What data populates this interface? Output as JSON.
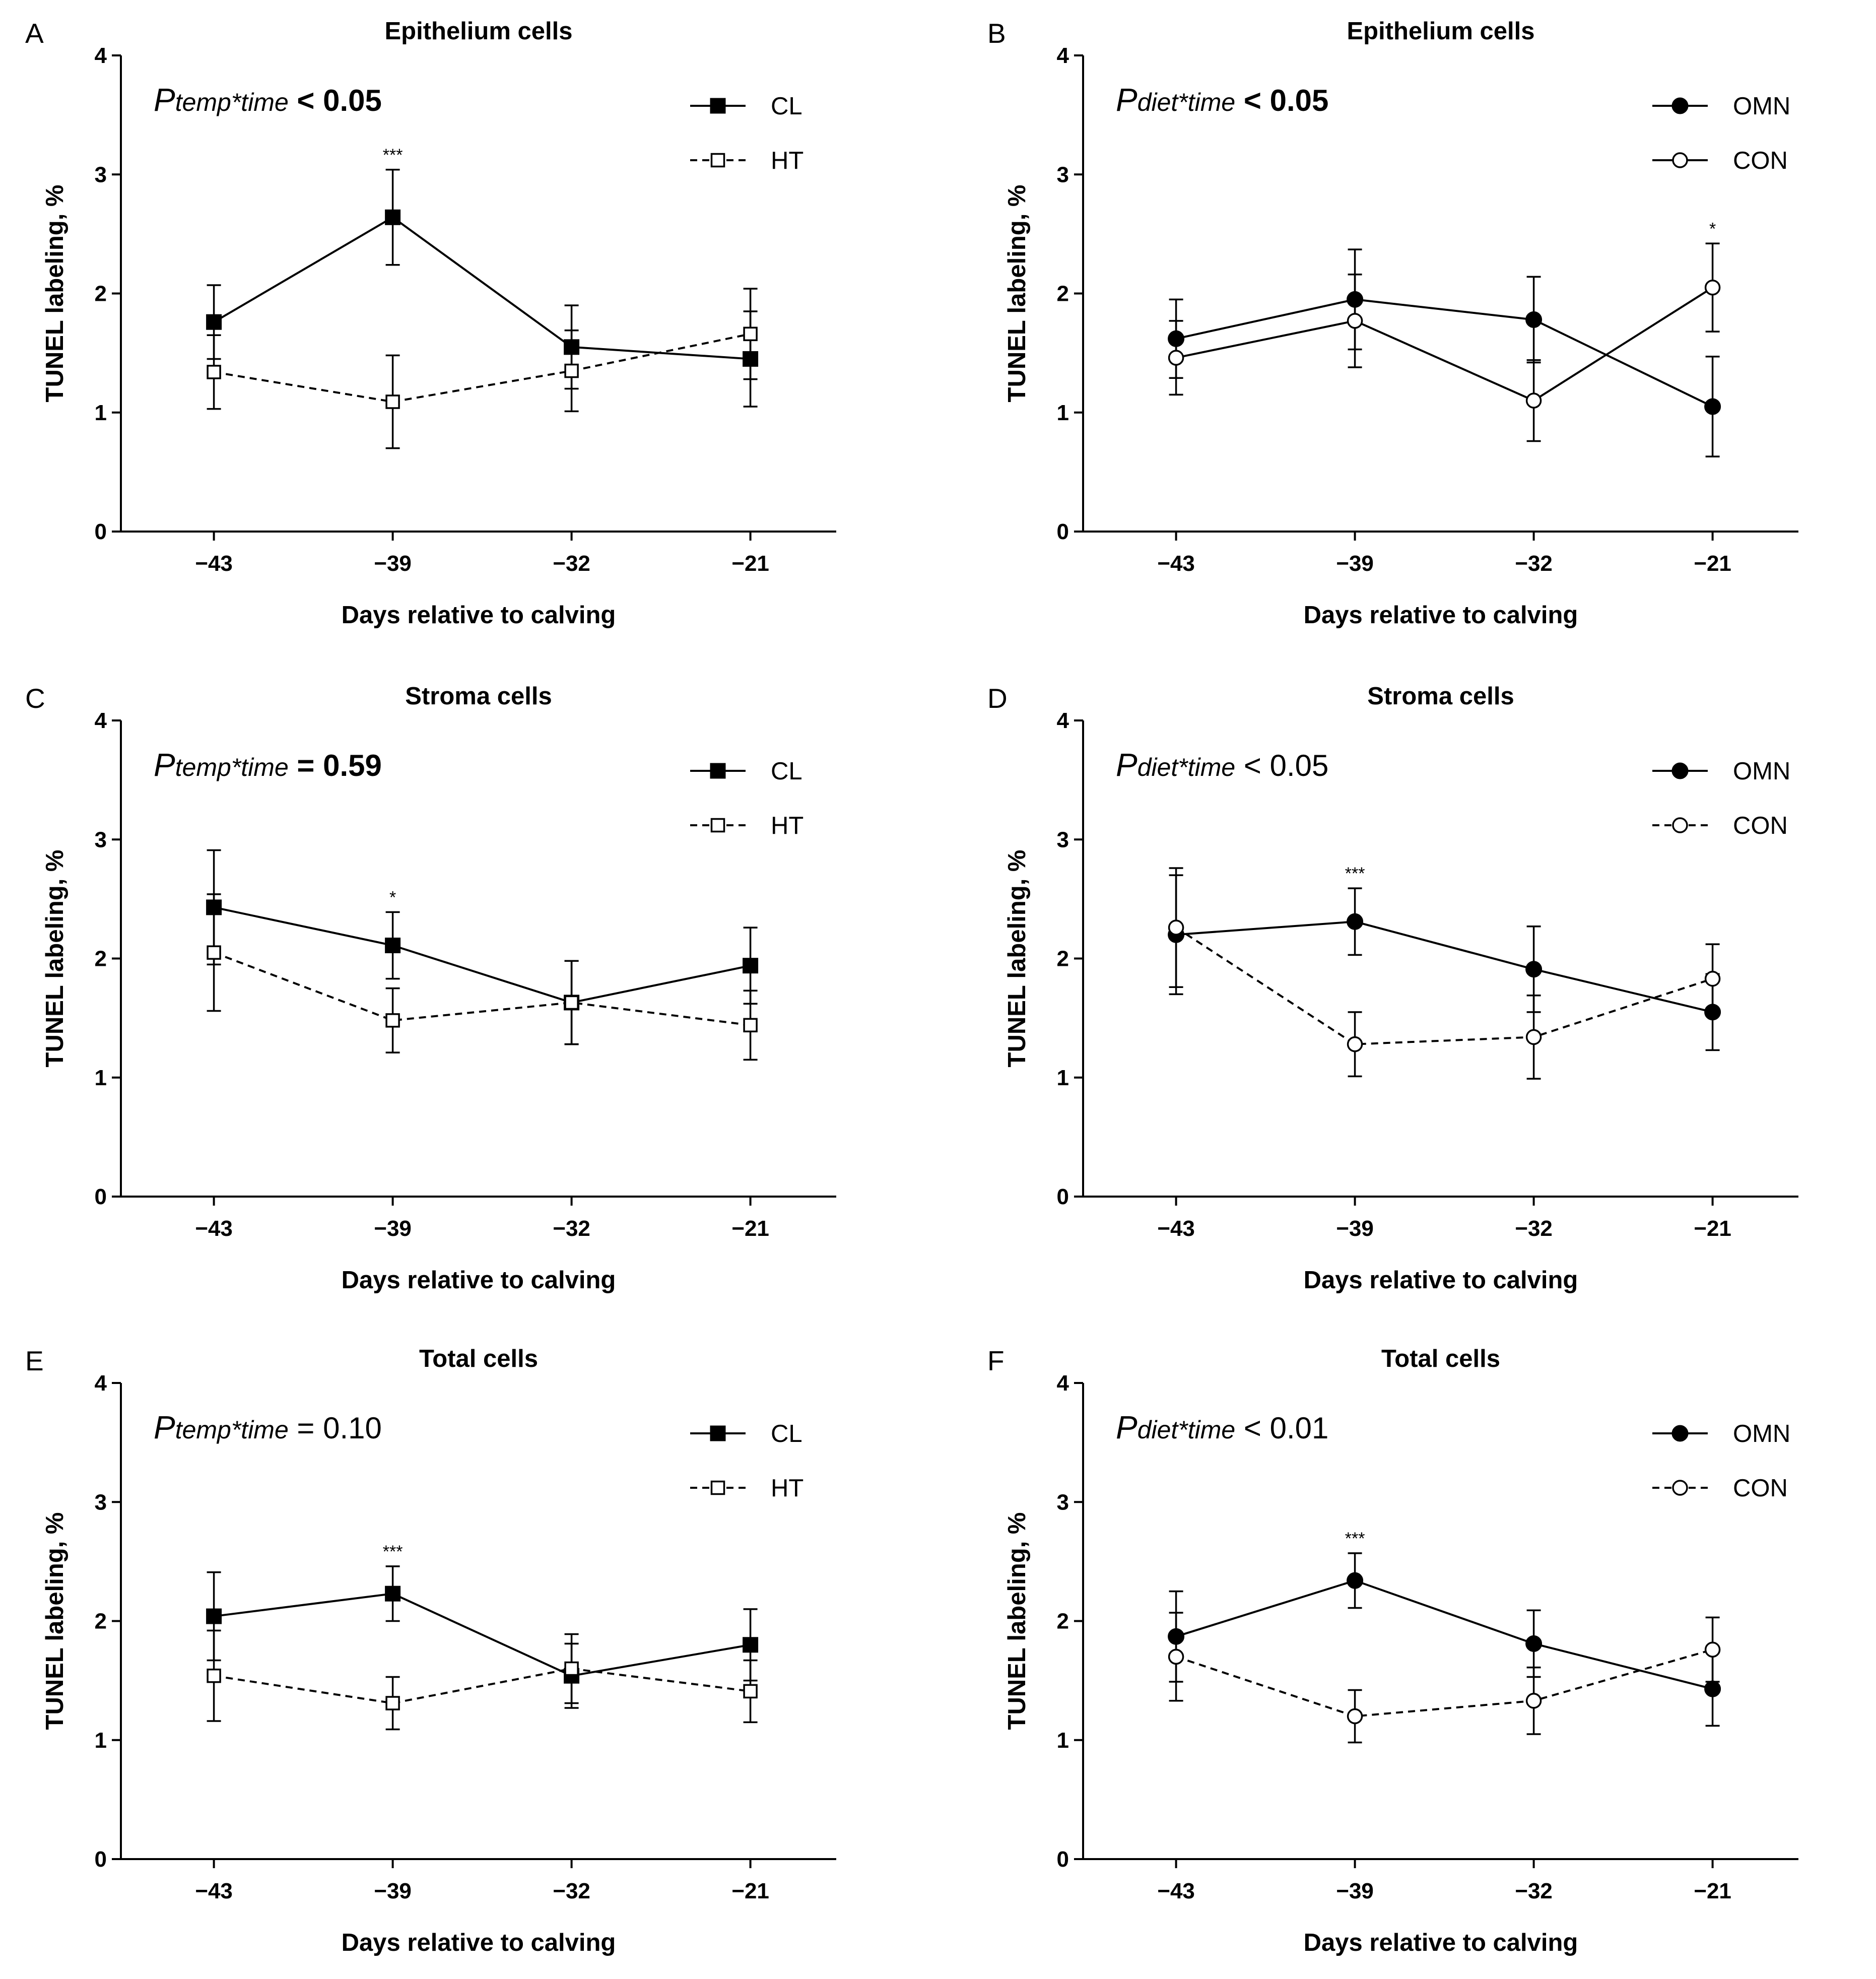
{
  "chart_data": [
    {
      "panel": "A",
      "type": "line",
      "title": "Epithelium cells",
      "xlabel": "Days relative to calving",
      "ylabel": "TUNEL labeling, %",
      "categories": [
        "-43",
        "-39",
        "-32",
        "-21"
      ],
      "category_labels": [
        "−43",
        "−39",
        "−32",
        "−21"
      ],
      "ylim": [
        0,
        4
      ],
      "yticks": [
        "0",
        "1",
        "2",
        "3",
        "4"
      ],
      "annotation": {
        "p": "P",
        "sub": "temp*time",
        "rest": " < 0.05",
        "rest_bold": true
      },
      "legend_position": "top-right",
      "series": [
        {
          "name": "CL",
          "marker": "square-filled",
          "dash": false,
          "values": [
            1.76,
            2.64,
            1.55,
            1.45
          ],
          "errors": [
            0.31,
            0.4,
            0.35,
            0.4
          ]
        },
        {
          "name": "HT",
          "marker": "square-open",
          "dash": true,
          "values": [
            1.34,
            1.09,
            1.35,
            1.66
          ],
          "errors": [
            0.31,
            0.39,
            0.34,
            0.38
          ]
        }
      ],
      "significance": [
        {
          "category": "-39",
          "label": "***"
        }
      ]
    },
    {
      "panel": "B",
      "type": "line",
      "title": "Epithelium cells",
      "xlabel": "Days relative to calving",
      "ylabel": "TUNEL labeling, %",
      "categories": [
        "-43",
        "-39",
        "-32",
        "-21"
      ],
      "category_labels": [
        "−43",
        "−39",
        "−32",
        "−21"
      ],
      "ylim": [
        0,
        4
      ],
      "yticks": [
        "0",
        "1",
        "2",
        "3",
        "4"
      ],
      "annotation": {
        "p": "P",
        "sub": "diet*time",
        "rest": " < 0.05",
        "rest_bold": true
      },
      "legend_position": "top-right",
      "series": [
        {
          "name": "OMN",
          "marker": "circle-filled",
          "dash": false,
          "values": [
            1.62,
            1.95,
            1.78,
            1.05
          ],
          "errors": [
            0.33,
            0.42,
            0.36,
            0.42
          ]
        },
        {
          "name": "CON",
          "marker": "circle-open",
          "dash": false,
          "values": [
            1.46,
            1.77,
            1.1,
            2.05
          ],
          "errors": [
            0.31,
            0.39,
            0.34,
            0.37
          ]
        }
      ],
      "significance": [
        {
          "category": "-21",
          "label": "*"
        }
      ]
    },
    {
      "panel": "C",
      "type": "line",
      "title": "Stroma cells",
      "xlabel": "Days relative to calving",
      "ylabel": "TUNEL labeling, %",
      "categories": [
        "-43",
        "-39",
        "-32",
        "-21"
      ],
      "category_labels": [
        "−43",
        "−39",
        "−32",
        "−21"
      ],
      "ylim": [
        0,
        4
      ],
      "yticks": [
        "0",
        "1",
        "2",
        "3",
        "4"
      ],
      "annotation": {
        "p": "P",
        "sub": "temp*time",
        "rest": " = 0.59",
        "rest_bold": true
      },
      "legend_position": "top-right",
      "series": [
        {
          "name": "CL",
          "marker": "square-filled",
          "dash": false,
          "values": [
            2.43,
            2.11,
            1.63,
            1.94
          ],
          "errors": [
            0.48,
            0.28,
            0.35,
            0.32
          ]
        },
        {
          "name": "HT",
          "marker": "square-open",
          "dash": true,
          "values": [
            2.05,
            1.48,
            1.63,
            1.44
          ],
          "errors": [
            0.49,
            0.27,
            0.35,
            0.29
          ]
        }
      ],
      "significance": [
        {
          "category": "-39",
          "label": "*"
        }
      ]
    },
    {
      "panel": "D",
      "type": "line",
      "title": "Stroma cells",
      "xlabel": "Days relative to calving",
      "ylabel": "TUNEL labeling, %",
      "categories": [
        "-43",
        "-39",
        "-32",
        "-21"
      ],
      "category_labels": [
        "−43",
        "−39",
        "−32",
        "−21"
      ],
      "ylim": [
        0,
        4
      ],
      "yticks": [
        "0",
        "1",
        "2",
        "3",
        "4"
      ],
      "annotation": {
        "p": "P",
        "sub": "diet*time",
        "rest": " < 0.05",
        "rest_bold": false
      },
      "legend_position": "top-right",
      "series": [
        {
          "name": "OMN",
          "marker": "circle-filled",
          "dash": false,
          "values": [
            2.2,
            2.31,
            1.91,
            1.55
          ],
          "errors": [
            0.5,
            0.28,
            0.36,
            0.32
          ]
        },
        {
          "name": "CON",
          "marker": "circle-open",
          "dash": true,
          "values": [
            2.26,
            1.28,
            1.34,
            1.83
          ],
          "errors": [
            0.5,
            0.27,
            0.35,
            0.29
          ]
        }
      ],
      "significance": [
        {
          "category": "-39",
          "label": "***"
        }
      ]
    },
    {
      "panel": "E",
      "type": "line",
      "title": "Total cells",
      "xlabel": "Days relative to calving",
      "ylabel": "TUNEL labeling, %",
      "categories": [
        "-43",
        "-39",
        "-32",
        "-21"
      ],
      "category_labels": [
        "−43",
        "−39",
        "−32",
        "−21"
      ],
      "ylim": [
        0,
        4
      ],
      "yticks": [
        "0",
        "1",
        "2",
        "3",
        "4"
      ],
      "annotation": {
        "p": "P",
        "sub": "temp*time",
        "rest": " = 0.10",
        "rest_bold": false
      },
      "legend_position": "top-right",
      "series": [
        {
          "name": "CL",
          "marker": "square-filled",
          "dash": false,
          "values": [
            2.04,
            2.23,
            1.54,
            1.8
          ],
          "errors": [
            0.37,
            0.23,
            0.27,
            0.3
          ]
        },
        {
          "name": "HT",
          "marker": "square-open",
          "dash": true,
          "values": [
            1.54,
            1.31,
            1.6,
            1.41
          ],
          "errors": [
            0.38,
            0.22,
            0.29,
            0.26
          ]
        }
      ],
      "significance": [
        {
          "category": "-39",
          "label": "***"
        }
      ]
    },
    {
      "panel": "F",
      "type": "line",
      "title": "Total cells",
      "xlabel": "Days relative to calving",
      "ylabel": "TUNEL labeling, %",
      "categories": [
        "-43",
        "-39",
        "-32",
        "-21"
      ],
      "category_labels": [
        "−43",
        "−39",
        "−32",
        "−21"
      ],
      "ylim": [
        0,
        4
      ],
      "yticks": [
        "0",
        "1",
        "2",
        "3",
        "4"
      ],
      "annotation": {
        "p": "P",
        "sub": "diet*time",
        "rest": " < 0.01",
        "rest_bold": false
      },
      "legend_position": "top-right",
      "series": [
        {
          "name": "OMN",
          "marker": "circle-filled",
          "dash": false,
          "values": [
            1.87,
            2.34,
            1.81,
            1.43
          ],
          "errors": [
            0.38,
            0.23,
            0.28,
            0.31
          ]
        },
        {
          "name": "CON",
          "marker": "circle-open",
          "dash": true,
          "values": [
            1.7,
            1.2,
            1.33,
            1.76
          ],
          "errors": [
            0.37,
            0.22,
            0.28,
            0.27
          ]
        }
      ],
      "significance": [
        {
          "category": "-39",
          "label": "***"
        }
      ]
    }
  ]
}
